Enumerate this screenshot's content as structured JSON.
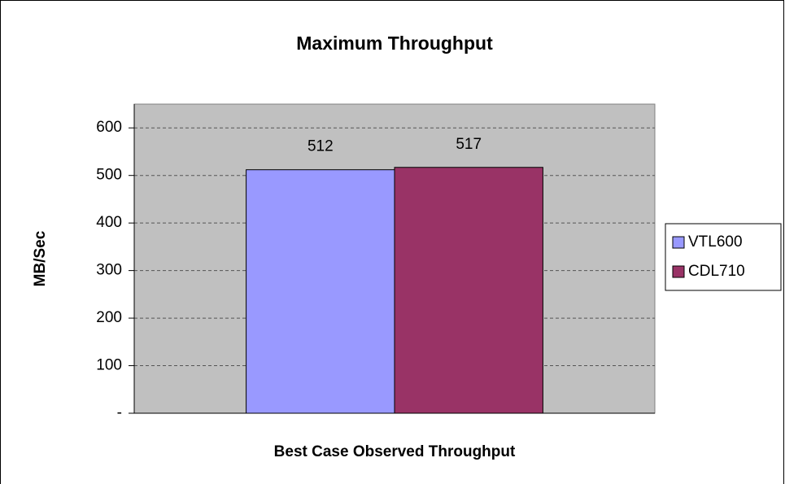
{
  "chart_data": {
    "type": "bar",
    "title": "Maximum Throughput",
    "xlabel": "Best Case Observed Throughput",
    "ylabel": "MB/Sec",
    "categories": [
      null
    ],
    "series": [
      {
        "name": "VTL600",
        "color": "#9999ff",
        "values": [
          512
        ]
      },
      {
        "name": "CDL710",
        "color": "#993366",
        "values": [
          517
        ]
      }
    ],
    "ylim": [
      0,
      650
    ],
    "yticks": [
      {
        "value": 0,
        "label": "-"
      },
      100,
      200,
      300,
      400,
      500,
      600
    ],
    "grid": true,
    "legend": "right"
  }
}
